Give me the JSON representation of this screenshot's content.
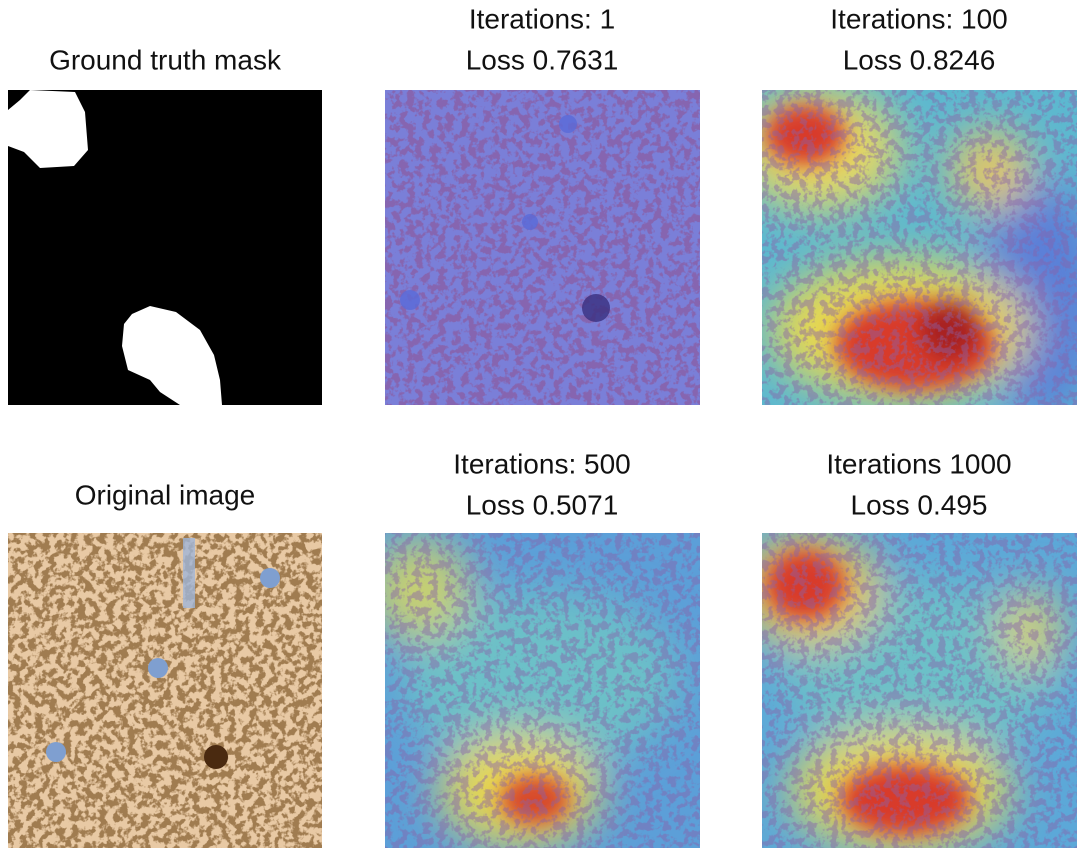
{
  "panels": [
    {
      "lines": [
        "Ground truth mask"
      ]
    },
    {
      "lines": [
        "Iterations: 1",
        "Loss 0.7631"
      ]
    },
    {
      "lines": [
        "Iterations: 100",
        "Loss 0.8246"
      ]
    },
    {
      "lines": [
        "Original image"
      ]
    },
    {
      "lines": [
        "Iterations: 500",
        "Loss 0.5071"
      ]
    },
    {
      "lines": [
        "Iterations 1000",
        "Loss 0.495"
      ]
    }
  ]
}
